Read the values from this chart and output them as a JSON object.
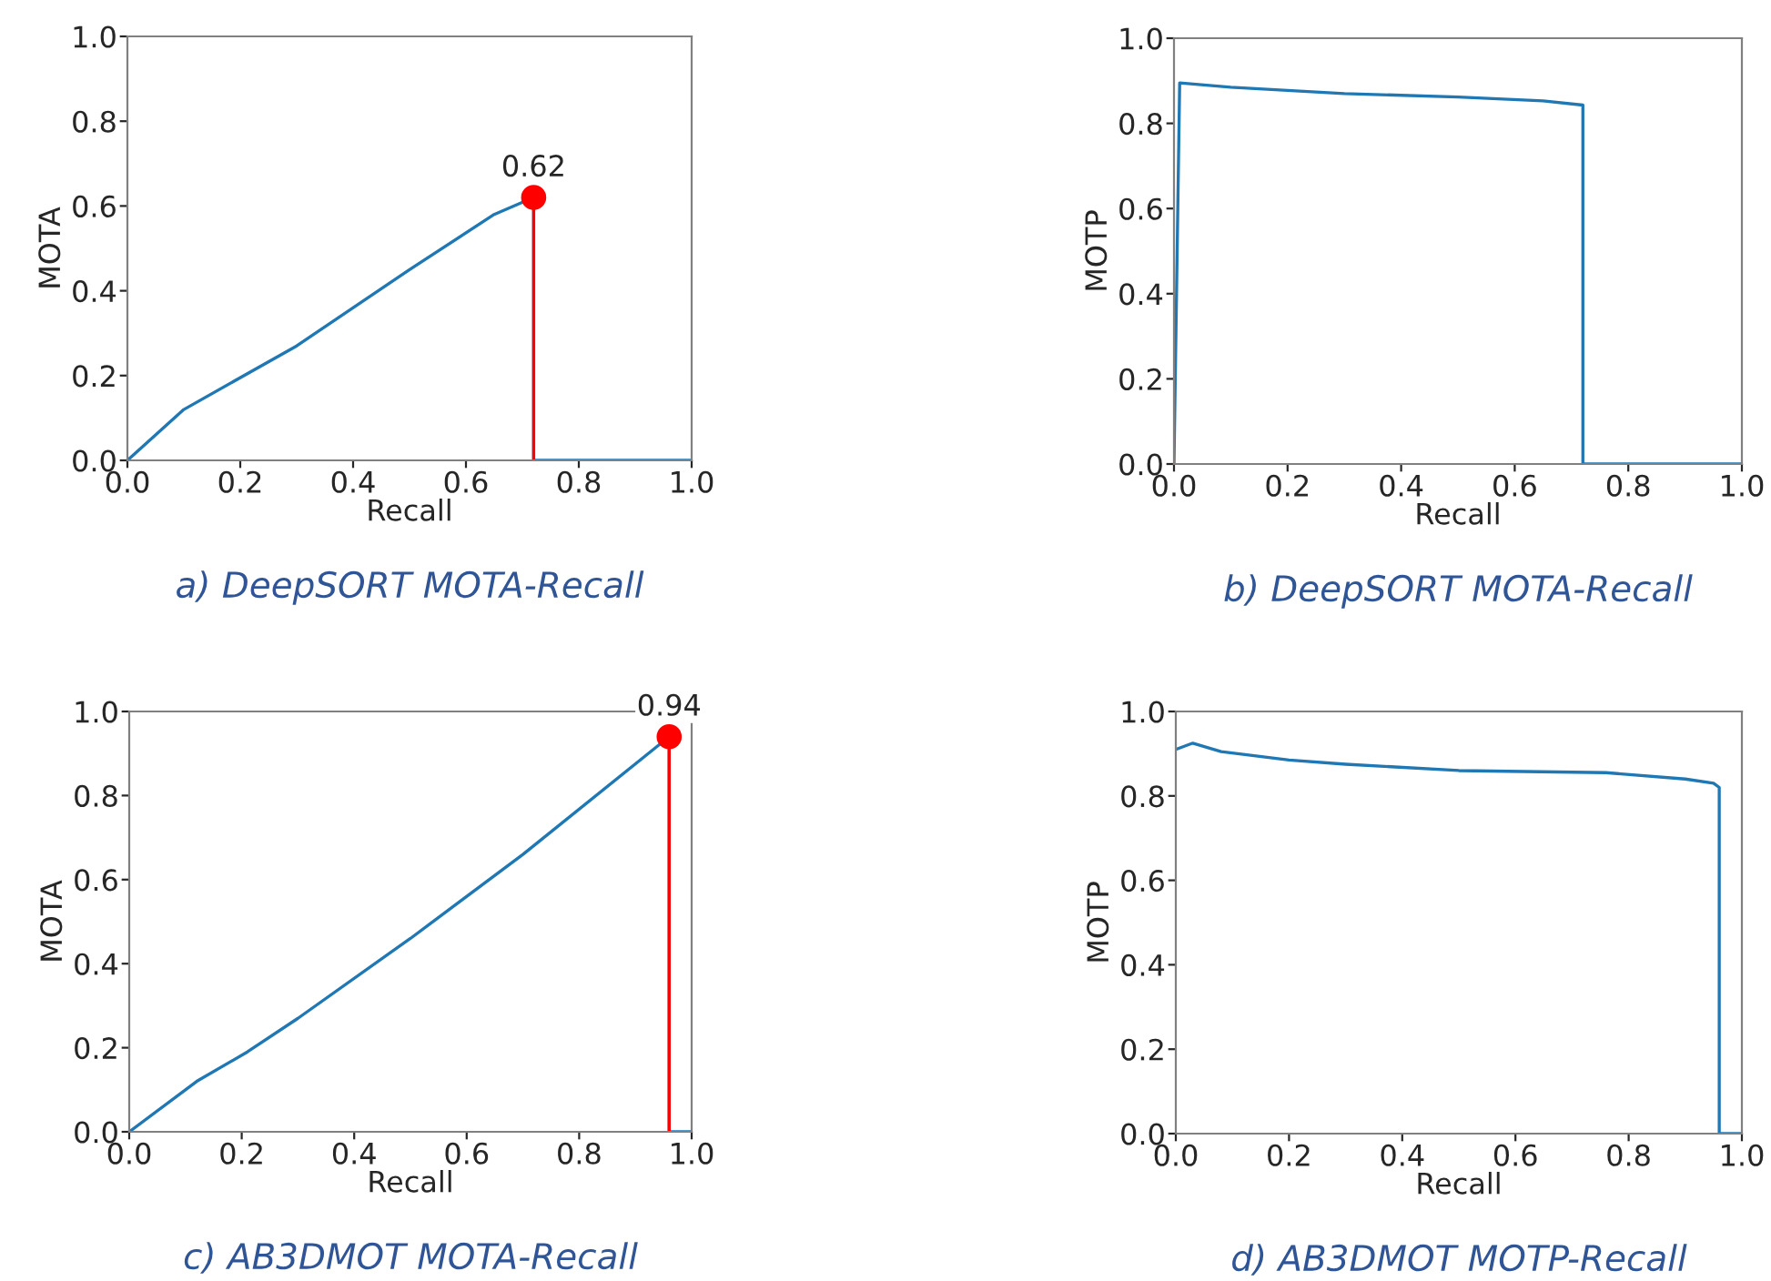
{
  "chart_data": [
    {
      "type": "line",
      "title": "a) DeepSORT MOTA-Recall",
      "xlabel": "Recall",
      "ylabel": "MOTA",
      "xlim": [
        0,
        1
      ],
      "ylim": [
        0,
        1
      ],
      "xticks": [
        {
          "value": 0,
          "label": "0.0"
        },
        {
          "value": 0.2,
          "label": "0.2"
        },
        {
          "value": 0.4,
          "label": "0.4"
        },
        {
          "value": 0.6,
          "label": "0.6"
        },
        {
          "value": 0.8,
          "label": "0.8"
        },
        {
          "value": 1,
          "label": "1.0"
        }
      ],
      "yticks": [
        {
          "value": 0,
          "label": "0.0"
        },
        {
          "value": 0.2,
          "label": "0.2"
        },
        {
          "value": 0.4,
          "label": "0.4"
        },
        {
          "value": 0.6,
          "label": "0.6"
        },
        {
          "value": 0.8,
          "label": "0.8"
        },
        {
          "value": 1,
          "label": "1.0"
        }
      ],
      "series": [
        {
          "type": "line",
          "color": "#1f77b4",
          "x": [
            0,
            0.1,
            0.3,
            0.5,
            0.65,
            0.72,
            0.72,
            1.0
          ],
          "values": [
            0,
            0.12,
            0.27,
            0.45,
            0.58,
            0.62,
            0,
            0
          ]
        },
        {
          "type": "line",
          "color": "#ff0000",
          "x": [
            0.72,
            0.72
          ],
          "values": [
            0,
            0.62
          ]
        },
        {
          "type": "scatter",
          "marker": "circle",
          "color": "#ff0000",
          "x": [
            0.72
          ],
          "values": [
            0.62
          ]
        }
      ],
      "annotations": [
        {
          "text": "0.62",
          "x": 0.72,
          "y": 0.62
        }
      ]
    },
    {
      "type": "line",
      "title": "b) DeepSORT MOTA-Recall",
      "xlabel": "Recall",
      "ylabel": "MOTP",
      "xlim": [
        0,
        1
      ],
      "ylim": [
        0,
        1
      ],
      "xticks": [
        {
          "value": 0,
          "label": "0.0"
        },
        {
          "value": 0.2,
          "label": "0.2"
        },
        {
          "value": 0.4,
          "label": "0.4"
        },
        {
          "value": 0.6,
          "label": "0.6"
        },
        {
          "value": 0.8,
          "label": "0.8"
        },
        {
          "value": 1,
          "label": "1.0"
        }
      ],
      "yticks": [
        {
          "value": 0,
          "label": "0.0"
        },
        {
          "value": 0.2,
          "label": "0.2"
        },
        {
          "value": 0.4,
          "label": "0.4"
        },
        {
          "value": 0.6,
          "label": "0.6"
        },
        {
          "value": 0.8,
          "label": "0.8"
        },
        {
          "value": 1,
          "label": "1.0"
        }
      ],
      "series": [
        {
          "type": "line",
          "color": "#1f77b4",
          "x": [
            0,
            0.01,
            0.1,
            0.3,
            0.5,
            0.65,
            0.72,
            0.72,
            1.0
          ],
          "values": [
            0,
            0.895,
            0.885,
            0.87,
            0.862,
            0.853,
            0.843,
            0,
            0
          ]
        }
      ]
    },
    {
      "type": "line",
      "title": "c) AB3DMOT MOTA-Recall",
      "xlabel": "Recall",
      "ylabel": "MOTA",
      "xlim": [
        0,
        1
      ],
      "ylim": [
        0,
        1
      ],
      "xticks": [
        {
          "value": 0,
          "label": "0.0"
        },
        {
          "value": 0.2,
          "label": "0.2"
        },
        {
          "value": 0.4,
          "label": "0.4"
        },
        {
          "value": 0.6,
          "label": "0.6"
        },
        {
          "value": 0.8,
          "label": "0.8"
        },
        {
          "value": 1,
          "label": "1.0"
        }
      ],
      "yticks": [
        {
          "value": 0,
          "label": "0.0"
        },
        {
          "value": 0.2,
          "label": "0.2"
        },
        {
          "value": 0.4,
          "label": "0.4"
        },
        {
          "value": 0.6,
          "label": "0.6"
        },
        {
          "value": 0.8,
          "label": "0.8"
        },
        {
          "value": 1,
          "label": "1.0"
        }
      ],
      "series": [
        {
          "type": "line",
          "color": "#1f77b4",
          "x": [
            0,
            0.12,
            0.21,
            0.3,
            0.5,
            0.7,
            0.96,
            0.96,
            1.0
          ],
          "values": [
            0,
            0.12,
            0.19,
            0.27,
            0.46,
            0.66,
            0.94,
            0,
            0
          ]
        },
        {
          "type": "line",
          "color": "#ff0000",
          "x": [
            0.96,
            0.96
          ],
          "values": [
            0,
            0.94
          ]
        },
        {
          "type": "scatter",
          "marker": "circle",
          "color": "#ff0000",
          "x": [
            0.96
          ],
          "values": [
            0.94
          ]
        }
      ],
      "annotations": [
        {
          "text": "0.94",
          "x": 0.96,
          "y": 0.94
        }
      ]
    },
    {
      "type": "line",
      "title": "d) AB3DMOT MOTP-Recall",
      "xlabel": "Recall",
      "ylabel": "MOTP",
      "xlim": [
        0,
        1
      ],
      "ylim": [
        0,
        1
      ],
      "xticks": [
        {
          "value": 0,
          "label": "0.0"
        },
        {
          "value": 0.2,
          "label": "0.2"
        },
        {
          "value": 0.4,
          "label": "0.4"
        },
        {
          "value": 0.6,
          "label": "0.6"
        },
        {
          "value": 0.8,
          "label": "0.8"
        },
        {
          "value": 1,
          "label": "1.0"
        }
      ],
      "yticks": [
        {
          "value": 0,
          "label": "0.0"
        },
        {
          "value": 0.2,
          "label": "0.2"
        },
        {
          "value": 0.4,
          "label": "0.4"
        },
        {
          "value": 0.6,
          "label": "0.6"
        },
        {
          "value": 0.8,
          "label": "0.8"
        },
        {
          "value": 1,
          "label": "1.0"
        }
      ],
      "series": [
        {
          "type": "line",
          "color": "#1f77b4",
          "x": [
            0,
            0.03,
            0.08,
            0.2,
            0.3,
            0.5,
            0.76,
            0.9,
            0.95,
            0.96,
            0.96,
            1.0
          ],
          "values": [
            0.91,
            0.925,
            0.905,
            0.885,
            0.875,
            0.86,
            0.855,
            0.84,
            0.83,
            0.82,
            0,
            0
          ]
        }
      ]
    }
  ]
}
